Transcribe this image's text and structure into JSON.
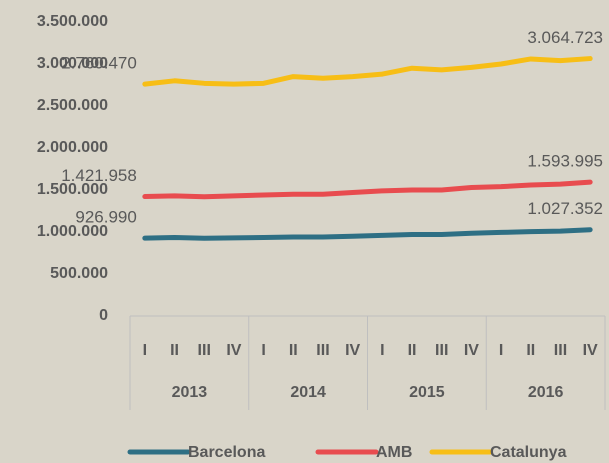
{
  "chart_data": {
    "type": "line",
    "categories": [
      "I",
      "II",
      "III",
      "IV",
      "I",
      "II",
      "III",
      "IV",
      "I",
      "II",
      "III",
      "IV",
      "I",
      "II",
      "III",
      "IV"
    ],
    "groups": [
      "2013",
      "2014",
      "2015",
      "2016"
    ],
    "series": [
      {
        "name": "Barcelona",
        "color": "#2e6f84",
        "values": [
          926990,
          935000,
          925000,
          930000,
          935000,
          940000,
          940000,
          950000,
          960000,
          970000,
          970000,
          985000,
          995000,
          1005000,
          1010000,
          1027352
        ],
        "value_labels": [
          "926.990",
          null,
          null,
          null,
          null,
          null,
          null,
          null,
          null,
          null,
          null,
          null,
          null,
          null,
          null,
          "1.027.352"
        ]
      },
      {
        "name": "AMB",
        "color": "#e84c4f",
        "values": [
          1421958,
          1430000,
          1420000,
          1430000,
          1440000,
          1450000,
          1450000,
          1470000,
          1490000,
          1500000,
          1500000,
          1530000,
          1540000,
          1560000,
          1570000,
          1593995
        ],
        "value_labels": [
          "1.421.958",
          null,
          null,
          null,
          null,
          null,
          null,
          null,
          null,
          null,
          null,
          null,
          null,
          null,
          null,
          "1.593.995"
        ]
      },
      {
        "name": "Catalunya",
        "color": "#f7be16",
        "values": [
          2760470,
          2800000,
          2770000,
          2760000,
          2770000,
          2850000,
          2830000,
          2850000,
          2880000,
          2950000,
          2930000,
          2960000,
          3000000,
          3060000,
          3040000,
          3064723
        ],
        "value_labels": [
          "2.760.470",
          null,
          null,
          null,
          null,
          null,
          null,
          null,
          null,
          null,
          null,
          null,
          null,
          null,
          null,
          "3.064.723"
        ]
      }
    ],
    "ylim": [
      0,
      3500000
    ],
    "yticks": [
      0,
      {
        "value": 500000,
        "label": "500.000"
      },
      {
        "value": 1000000,
        "label": "1.000.000"
      },
      {
        "value": 1500000,
        "label": "1.500.000"
      },
      {
        "value": 2000000,
        "label": "2.000.000"
      },
      {
        "value": 2500000,
        "label": "2.500.000"
      },
      {
        "value": 3000000,
        "label": "3.000.000"
      },
      {
        "value": 3500000,
        "label": "3.500.000"
      }
    ],
    "legend": "bottom"
  }
}
